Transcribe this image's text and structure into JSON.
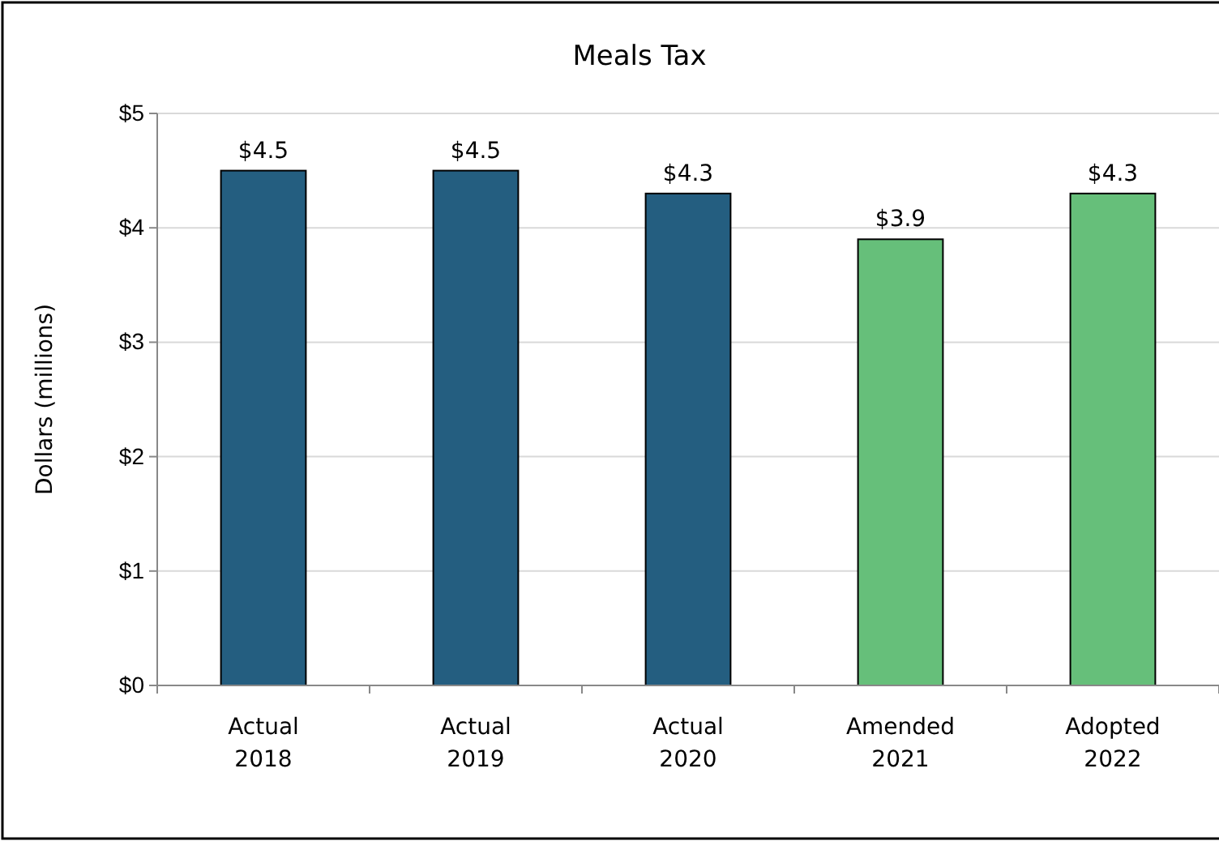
{
  "chart_data": {
    "type": "bar",
    "title": "Meals Tax",
    "ylabel": "Dollars (millions)",
    "categories": [
      "Actual 2018",
      "Actual 2019",
      "Actual 2020",
      "Amended 2021",
      "Adopted 2022"
    ],
    "values": [
      4.5,
      4.5,
      4.3,
      3.9,
      4.3
    ],
    "colors": [
      "#245e80",
      "#245e80",
      "#245e80",
      "#66bf7a",
      "#66bf7a"
    ],
    "ylim": [
      0,
      5
    ],
    "yticks": [
      {
        "value": 0,
        "label": "$0"
      },
      {
        "value": 1,
        "label": "$1"
      },
      {
        "value": 2,
        "label": "$2"
      },
      {
        "value": 3,
        "label": "$3"
      },
      {
        "value": 4,
        "label": "$4"
      },
      {
        "value": 5,
        "label": "$5"
      }
    ],
    "value_labels": [
      "$4.5",
      "$4.5",
      "$4.3",
      "$3.9",
      "$4.3"
    ],
    "grid": "y"
  }
}
